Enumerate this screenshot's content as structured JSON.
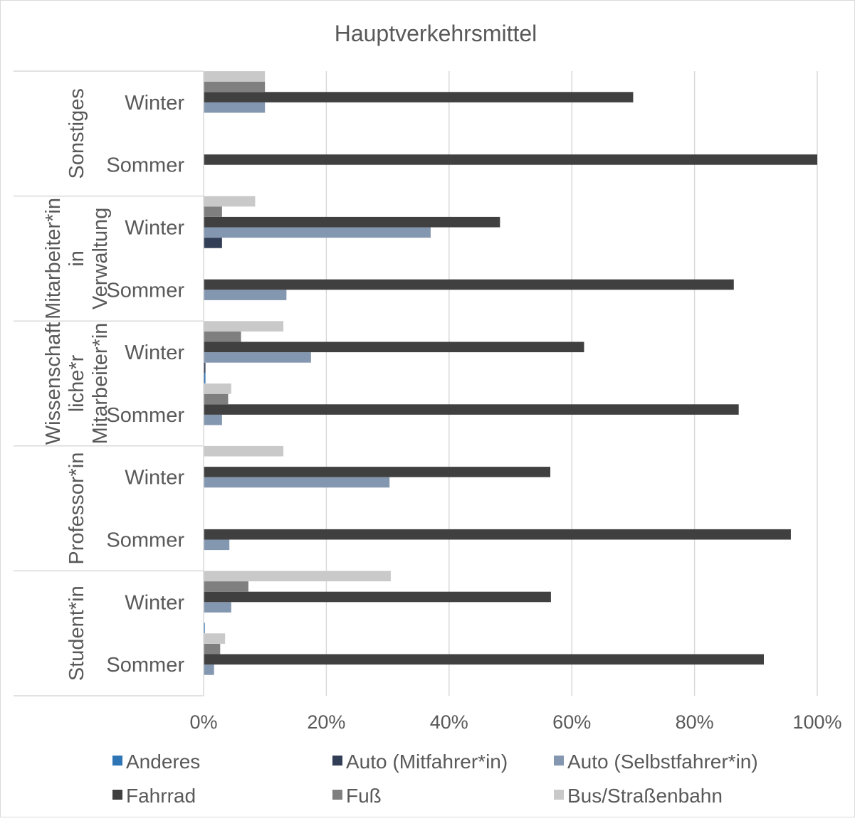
{
  "chart_data": {
    "type": "bar",
    "orientation": "horizontal",
    "stacked": false,
    "title": "Hauptverkehrsmittel",
    "xlabel": "",
    "ylabel": "",
    "xlim": [
      0,
      1
    ],
    "x_ticks": [
      "0%",
      "20%",
      "40%",
      "60%",
      "80%",
      "100%"
    ],
    "grid": true,
    "legend_position": "bottom",
    "groups": [
      {
        "label": "Sonstiges",
        "label_lines": [
          "Sonstiges"
        ]
      },
      {
        "label": "Mitarbeiter*in in Verwaltung",
        "label_lines": [
          "Mitarbeiter*in",
          "in",
          "Verwaltung"
        ]
      },
      {
        "label": "Wissenschaftliche*r Mitarbeiter*in",
        "label_lines": [
          "Wissenschaft",
          "liche*r",
          "Mitarbeiter*in"
        ]
      },
      {
        "label": "Professor*in",
        "label_lines": [
          "Professor*in"
        ]
      },
      {
        "label": "Student*in",
        "label_lines": [
          "Student*in"
        ]
      }
    ],
    "categories": [
      {
        "group": 0,
        "label": "Winter"
      },
      {
        "group": 0,
        "label": "Sommer"
      },
      {
        "group": 1,
        "label": "Winter"
      },
      {
        "group": 1,
        "label": "Sommer"
      },
      {
        "group": 2,
        "label": "Winter"
      },
      {
        "group": 2,
        "label": "Sommer"
      },
      {
        "group": 3,
        "label": "Winter"
      },
      {
        "group": 3,
        "label": "Sommer"
      },
      {
        "group": 4,
        "label": "Winter"
      },
      {
        "group": 4,
        "label": "Sommer"
      }
    ],
    "series": [
      {
        "name": "Anderes",
        "color": "#2e75b6",
        "values": [
          0,
          0,
          0,
          0,
          0.003,
          0,
          0,
          0,
          0.002,
          0
        ]
      },
      {
        "name": "Auto (Mitfahrer*in)",
        "color": "#323e55",
        "values": [
          0,
          0,
          0.03,
          0,
          0.003,
          0,
          0,
          0,
          0,
          0
        ]
      },
      {
        "name": "Auto (Selbstfahrer*in)",
        "color": "#8497b0",
        "values": [
          0.1,
          0,
          0.37,
          0.135,
          0.175,
          0.03,
          0.303,
          0.042,
          0.045,
          0.017
        ]
      },
      {
        "name": "Fahrrad",
        "color": "#404040",
        "values": [
          0.7,
          1.0,
          0.483,
          0.864,
          0.62,
          0.872,
          0.565,
          0.957,
          0.566,
          0.913
        ]
      },
      {
        "name": "Fuß",
        "color": "#7f7f7f",
        "values": [
          0.1,
          0,
          0.03,
          0,
          0.061,
          0.04,
          0,
          0,
          0.073,
          0.027
        ]
      },
      {
        "name": "Bus/Straßenbahn",
        "color": "#c9c9c9",
        "values": [
          0.1,
          0,
          0.084,
          0,
          0.13,
          0.045,
          0.13,
          0,
          0.305,
          0.035
        ]
      }
    ]
  }
}
